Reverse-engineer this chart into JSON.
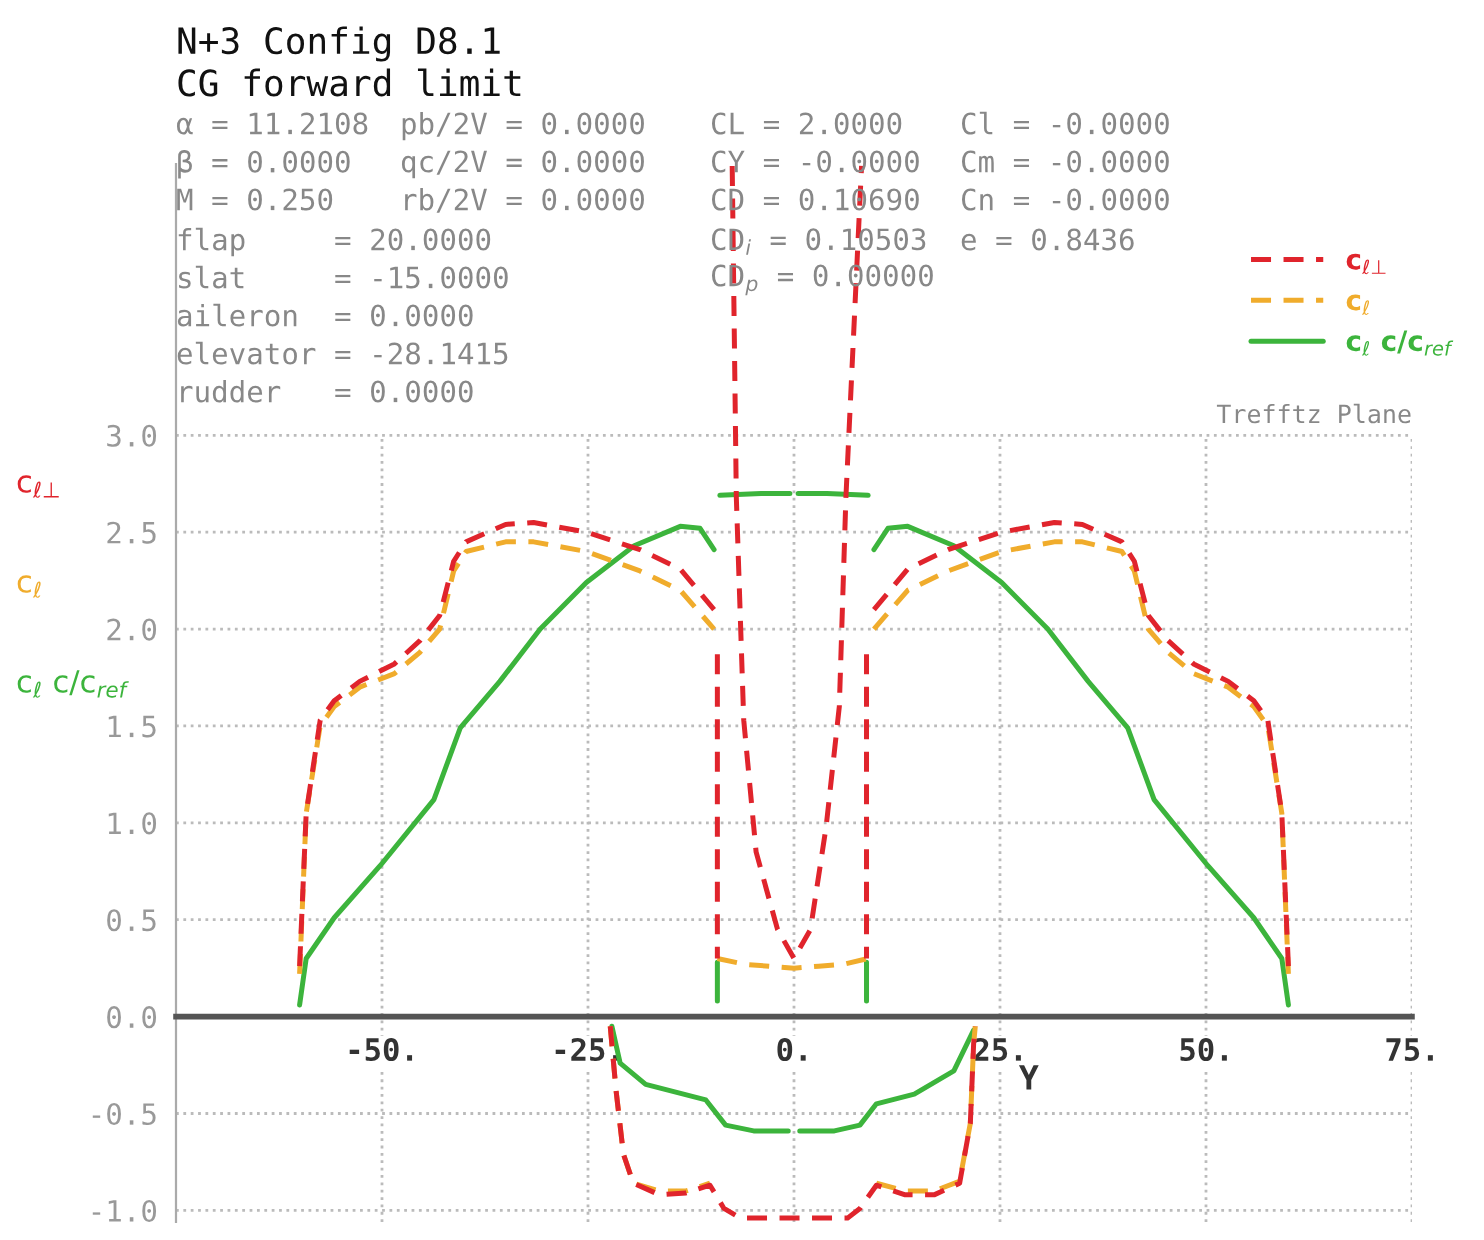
{
  "chart_data": {
    "type": "line",
    "title": "N+3 Config D8.1",
    "subtitle": "CG forward limit",
    "xlabel": "Y",
    "annotations": [
      "α = 11.2108",
      "pb/2V = 0.0000",
      "CL = 2.0000",
      "Cl = -0.0000",
      "β = 0.0000",
      "qc/2V = 0.0000",
      "CY = -0.0000",
      "Cm = -0.0000",
      "M = 0.250",
      "rb/2V = 0.0000",
      "CD = 0.10690",
      "Cn = -0.0000",
      "flap     = 20.0000",
      "CD$_{i}$ = 0.10503",
      "e = 0.8436",
      "slat     = -15.0000",
      "CD$_{p}$ = 0.00000",
      "aileron  = 0.0000",
      "elevator = -28.1415",
      "rudder   = 0.0000",
      "Trefftz Plane"
    ],
    "xlim": [
      -75,
      75
    ],
    "ylim": [
      -1.06,
      4.4
    ],
    "xticks": [
      {
        "value": -50,
        "label": "-50."
      },
      {
        "value": -25,
        "label": "-25."
      },
      {
        "value": 0,
        "label": "0."
      },
      {
        "value": 25,
        "label": "25."
      },
      {
        "value": 50,
        "label": "50."
      },
      {
        "value": 75,
        "label": "75."
      }
    ],
    "yticks": [
      {
        "value": -1,
        "label": "-1.0"
      },
      -0.5,
      {
        "value": 0,
        "label": "0.0"
      },
      0.5,
      {
        "value": 1,
        "label": "1.0"
      },
      1.5,
      {
        "value": 2,
        "label": "2.0"
      },
      2.5,
      {
        "value": 3,
        "label": "3.0"
      }
    ],
    "grid": true,
    "legend": "top right",
    "series": [
      {
        "name": "c$_{ℓ⊥}$",
        "color": "#e0242c",
        "line_style": "dashed",
        "x": [
          -60,
          -59.2,
          -57.5,
          -55.8,
          -52.7,
          -48.5,
          -45.4,
          -43,
          -41.3,
          -39.8,
          -35,
          -31.6,
          -25.2,
          -18.7,
          -13.8,
          -9.7,
          null,
          -9.3,
          -9.3,
          null,
          -7.5,
          -7.0,
          -6.1,
          -4.6,
          -2.0,
          0,
          2.0,
          3.9,
          5.5,
          6.3,
          8.2,
          null,
          8.8,
          8.8,
          null,
          9.7,
          13.8,
          18.7,
          25.2,
          31.6,
          35,
          39.8,
          41.3,
          43,
          45.4,
          48.5,
          52.7,
          55.8,
          57.5,
          59.2,
          60,
          null,
          -22.3,
          -21.6,
          -20.7,
          -19.5,
          -16.3,
          -13.1,
          -10.2,
          -8.5,
          -6.5,
          0,
          6.5,
          8.0,
          10.0,
          13.5,
          17.0,
          20.1,
          21.4,
          21.8,
          22.0
        ],
        "values": [
          0.26,
          1.05,
          1.53,
          1.63,
          1.73,
          1.82,
          1.94,
          2.07,
          2.35,
          2.45,
          2.54,
          2.55,
          2.5,
          2.41,
          2.31,
          2.1,
          null,
          1.87,
          0.3,
          null,
          4.39,
          2.68,
          1.53,
          0.85,
          0.45,
          0.3,
          0.45,
          0.98,
          1.6,
          2.68,
          4.39,
          null,
          1.87,
          0.3,
          null,
          2.1,
          2.31,
          2.41,
          2.5,
          2.55,
          2.54,
          2.45,
          2.35,
          2.07,
          1.94,
          1.82,
          1.73,
          1.63,
          1.53,
          1.05,
          0.26,
          null,
          -0.05,
          -0.38,
          -0.71,
          -0.86,
          -0.92,
          -0.91,
          -0.87,
          -0.99,
          -1.04,
          -1.04,
          -1.04,
          -0.99,
          -0.87,
          -0.92,
          -0.92,
          -0.86,
          -0.55,
          -0.14,
          -0.05
        ]
      },
      {
        "name": "c$_{ℓ}$",
        "color": "#f0ac2c",
        "line_style": "dashed",
        "x": [
          -60,
          -59.2,
          -57.5,
          -55.8,
          -52.7,
          -48.5,
          -45.4,
          -43,
          -41.3,
          -39.8,
          -35,
          -31.6,
          -25.2,
          -18.7,
          -13.8,
          -9.7,
          null,
          -9.3,
          -6,
          -3,
          0,
          3,
          6,
          9,
          null,
          9.7,
          13.8,
          18.7,
          25.2,
          31.6,
          35,
          39.8,
          41.3,
          43,
          45.4,
          48.5,
          52.7,
          55.8,
          57.5,
          59.2,
          60,
          null,
          -22.3,
          -21.6,
          -20.7,
          -19.5,
          -16.3,
          -13.1,
          -10.2,
          -8.5,
          -6.5,
          0,
          6.5,
          8.0,
          10.0,
          13.5,
          17.0,
          20.1,
          21.4,
          21.8,
          22.0
        ],
        "values": [
          0.22,
          1.05,
          1.5,
          1.6,
          1.7,
          1.77,
          1.88,
          2.0,
          2.3,
          2.4,
          2.45,
          2.45,
          2.4,
          2.3,
          2.2,
          2.0,
          null,
          0.3,
          0.27,
          0.26,
          0.25,
          0.26,
          0.27,
          0.3,
          null,
          2.0,
          2.2,
          2.3,
          2.4,
          2.45,
          2.45,
          2.4,
          2.3,
          2.0,
          1.88,
          1.77,
          1.7,
          1.6,
          1.5,
          1.05,
          0.22,
          null,
          -0.05,
          -0.38,
          -0.71,
          -0.86,
          -0.9,
          -0.9,
          -0.86,
          null,
          null,
          null,
          null,
          null,
          -0.86,
          -0.9,
          -0.9,
          -0.85,
          -0.55,
          -0.14,
          -0.05
        ]
      },
      {
        "name": "c$_{ℓ}$ c/c$_{ref}$",
        "color": "#3cb43c",
        "line_style": "solid",
        "x": [
          -60,
          -59.2,
          -55.8,
          -50.2,
          -43.7,
          -40.5,
          -35.7,
          -30.8,
          -25.2,
          -19.4,
          -13.8,
          -11.4,
          -9.7,
          null,
          -9.3,
          -9.3,
          null,
          -9.0,
          -4.0,
          -0.5,
          null,
          0.5,
          4.0,
          9.0,
          null,
          8.8,
          8.8,
          null,
          9.7,
          11.4,
          13.8,
          19.4,
          25.2,
          30.8,
          35.7,
          40.5,
          43.7,
          50.2,
          55.8,
          59.2,
          60,
          null,
          -22.1,
          -21.1,
          -18.0,
          -10.7,
          -8.3,
          -4.9,
          -0.7,
          null,
          0.7,
          4.9,
          8.0,
          10.0,
          14.6,
          19.4,
          21.8
        ],
        "values": [
          0.06,
          0.3,
          0.51,
          0.78,
          1.12,
          1.49,
          1.73,
          2.0,
          2.24,
          2.43,
          2.53,
          2.52,
          2.41,
          null,
          0.28,
          0.08,
          null,
          2.69,
          2.7,
          2.7,
          null,
          2.7,
          2.7,
          2.69,
          null,
          0.28,
          0.08,
          null,
          2.41,
          2.52,
          2.53,
          2.43,
          2.24,
          2.0,
          1.73,
          1.49,
          1.12,
          0.78,
          0.51,
          0.3,
          0.06,
          null,
          -0.05,
          -0.24,
          -0.35,
          -0.43,
          -0.56,
          -0.59,
          -0.59,
          null,
          -0.59,
          -0.59,
          -0.56,
          -0.45,
          -0.4,
          -0.28,
          -0.07
        ]
      }
    ]
  }
}
